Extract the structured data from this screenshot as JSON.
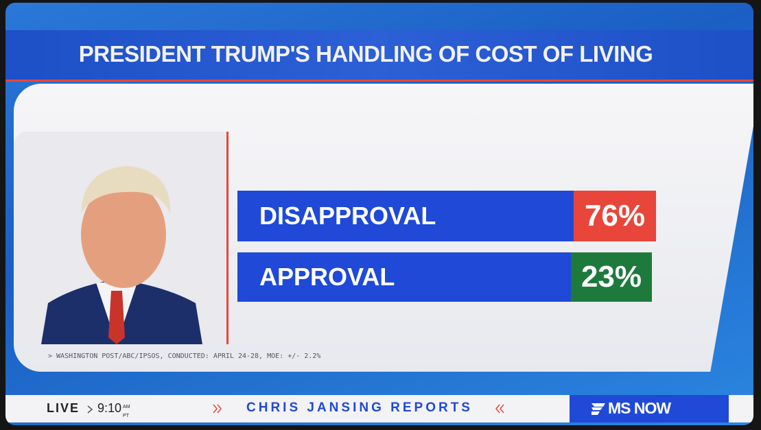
{
  "header": {
    "title": "PRESIDENT TRUMP'S HANDLING OF COST OF LIVING"
  },
  "results": {
    "rows": [
      {
        "label": "DISAPPROVAL",
        "value": "76%"
      },
      {
        "label": "APPROVAL",
        "value": "23%"
      }
    ]
  },
  "source": "> WASHINGTON POST/ABC/IPSOS, CONDUCTED: APRIL 24-28, MOE: +/- 2.2%",
  "footer": {
    "live": "LIVE",
    "time": "9:10",
    "am": "AM",
    "tz": "PT",
    "show": "CHRIS JANSING REPORTS",
    "brand": "MS NOW"
  }
}
